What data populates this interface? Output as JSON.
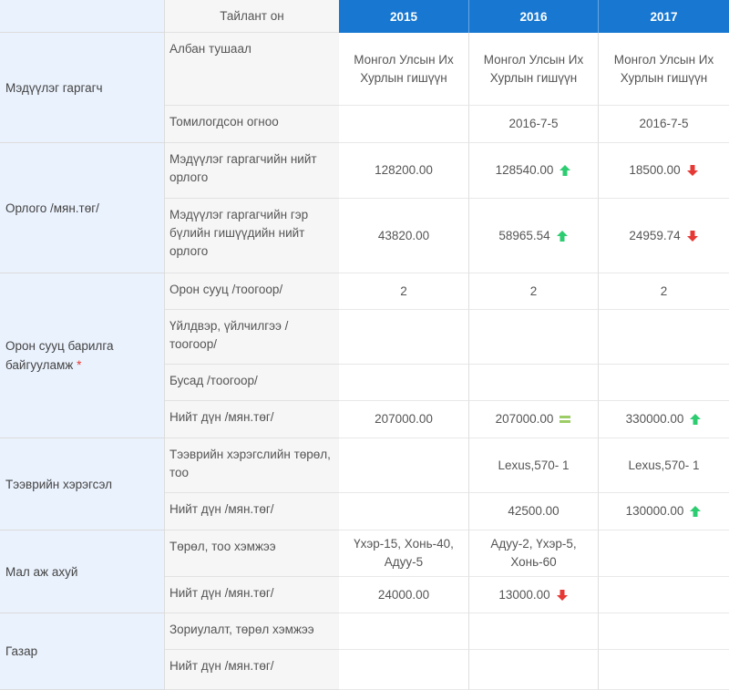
{
  "header": {
    "subtitle": "Тайлант он",
    "years": [
      "2015",
      "2016",
      "2017"
    ]
  },
  "groups": [
    {
      "label": "Мэдүүлэг гаргагч"
    },
    {
      "label": "Орлого /мян.төг/"
    },
    {
      "label": "Орон сууц барилга байгууламж",
      "required_mark": "*"
    },
    {
      "label": "Тээврийн хэрэгсэл"
    },
    {
      "label": "Мал аж ахуй"
    },
    {
      "label": "Газар"
    }
  ],
  "rows": [
    {
      "label": "Албан тушаал",
      "values": [
        "Монгол Улсын Их Хурлын гишүүн",
        "Монгол Улсын Их Хурлын гишүүн",
        "Монгол Улсын Их Хурлын гишүүн"
      ],
      "trends": [
        "",
        "",
        ""
      ]
    },
    {
      "label": "Томилогдсон огноо",
      "values": [
        "",
        "2016-7-5",
        "2016-7-5"
      ],
      "trends": [
        "",
        "",
        ""
      ]
    },
    {
      "label": "Мэдүүлэг гаргагчийн нийт орлого",
      "values": [
        "128200.00",
        "128540.00",
        "18500.00"
      ],
      "trends": [
        "",
        "up",
        "down"
      ]
    },
    {
      "label": "Мэдүүлэг гаргагчийн гэр бүлийн гишүүдийн нийт орлого",
      "values": [
        "43820.00",
        "58965.54",
        "24959.74"
      ],
      "trends": [
        "",
        "up",
        "down"
      ]
    },
    {
      "label": "Орон сууц /тоогоор/",
      "values": [
        "2",
        "2",
        "2"
      ],
      "trends": [
        "",
        "",
        ""
      ]
    },
    {
      "label": "Үйлдвэр, үйлчилгээ /тоогоор/",
      "values": [
        "",
        "",
        ""
      ],
      "trends": [
        "",
        "",
        ""
      ]
    },
    {
      "label": "Бусад /тоогоор/",
      "values": [
        "",
        "",
        ""
      ],
      "trends": [
        "",
        "",
        ""
      ]
    },
    {
      "label": "Нийт дүн /мян.төг/",
      "values": [
        "207000.00",
        "207000.00",
        "330000.00"
      ],
      "trends": [
        "",
        "equal",
        "up"
      ]
    },
    {
      "label": "Тээврийн хэрэгслийн төрөл, тоо",
      "values": [
        "",
        "Lexus,570- 1",
        "Lexus,570- 1"
      ],
      "trends": [
        "",
        "",
        ""
      ]
    },
    {
      "label": "Нийт дүн /мян.төг/",
      "values": [
        "",
        "42500.00",
        "130000.00"
      ],
      "trends": [
        "",
        "",
        "up"
      ]
    },
    {
      "label": "Төрөл, тоо хэмжээ",
      "values": [
        "Үхэр-15, Хонь-40, Адуу-5",
        "Адуу-2, Үхэр-5, Хонь-60",
        ""
      ],
      "trends": [
        "",
        "",
        ""
      ]
    },
    {
      "label": "Нийт дүн /мян.төг/",
      "values": [
        "24000.00",
        "13000.00",
        ""
      ],
      "trends": [
        "",
        "down",
        ""
      ]
    },
    {
      "label": "Зориулалт, төрөл хэмжээ",
      "values": [
        "",
        "",
        ""
      ],
      "trends": [
        "",
        "",
        ""
      ]
    },
    {
      "label": "Нийт дүн /мян.төг/",
      "values": [
        "",
        "",
        ""
      ],
      "trends": [
        "",
        "",
        ""
      ]
    }
  ],
  "colors": {
    "header_bg": "#1777d1",
    "group_bg": "#eaf2fd",
    "up": "#2ecc71",
    "down": "#e53935",
    "equal": "#9ccc65"
  }
}
